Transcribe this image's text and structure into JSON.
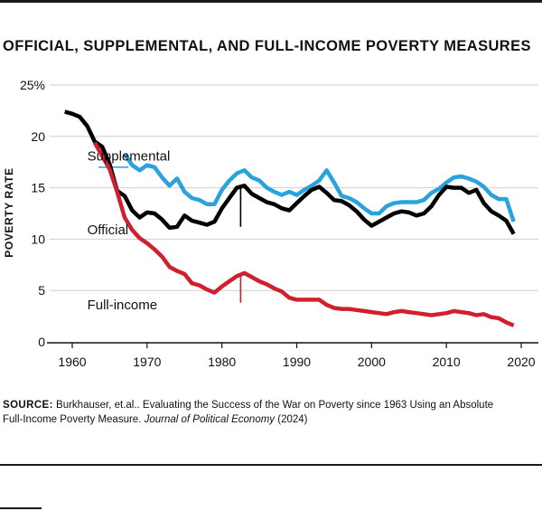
{
  "chart_data": {
    "type": "line",
    "title": "OFFICIAL, SUPPLEMENTAL, AND FULL-INCOME POVERTY MEASURES",
    "xlabel": "",
    "ylabel": "POVERTY RATE",
    "xlim": [
      1960,
      2020
    ],
    "ylim": [
      0,
      25
    ],
    "x_ticks": [
      1960,
      1970,
      1980,
      1990,
      2000,
      2010,
      2020
    ],
    "y_ticks": [
      {
        "value": 0,
        "label": "0"
      },
      {
        "value": 5,
        "label": "5"
      },
      {
        "value": 10,
        "label": "10"
      },
      {
        "value": 15,
        "label": "15"
      },
      {
        "value": 20,
        "label": "20"
      },
      {
        "value": 25,
        "label": "25%"
      }
    ],
    "series": [
      {
        "name": "Supplemental",
        "color": "#2aa3dd",
        "label_x": 1962,
        "label_y": 18.1,
        "leader": [
          [
            1963.5,
            17.0
          ],
          [
            1967.5,
            17.0
          ]
        ],
        "x": [
          1967,
          1968,
          1969,
          1970,
          1971,
          1972,
          1973,
          1974,
          1975,
          1976,
          1977,
          1978,
          1979,
          1980,
          1981,
          1982,
          1983,
          1984,
          1985,
          1986,
          1987,
          1988,
          1989,
          1990,
          1991,
          1992,
          1993,
          1994,
          1995,
          1996,
          1997,
          1998,
          1999,
          2000,
          2001,
          2002,
          2003,
          2004,
          2005,
          2006,
          2007,
          2008,
          2009,
          2010,
          2011,
          2012,
          2013,
          2014,
          2015,
          2016,
          2017,
          2018,
          2019
        ],
        "values": [
          18.3,
          17.2,
          16.7,
          17.2,
          17.0,
          16.0,
          15.2,
          15.9,
          14.6,
          14.0,
          13.8,
          13.4,
          13.4,
          14.8,
          15.7,
          16.4,
          16.7,
          16.0,
          15.7,
          15.0,
          14.6,
          14.3,
          14.6,
          14.3,
          14.8,
          15.2,
          15.7,
          16.7,
          15.5,
          14.2,
          14.0,
          13.6,
          13.0,
          12.5,
          12.5,
          13.2,
          13.5,
          13.6,
          13.6,
          13.6,
          13.8,
          14.5,
          14.9,
          15.5,
          16.0,
          16.1,
          15.9,
          15.6,
          15.1,
          14.3,
          13.9,
          13.9,
          11.7
        ]
      },
      {
        "name": "Official",
        "color": "#000000",
        "label_x": 1962,
        "label_y": 10.9,
        "leader": [
          [
            1982.5,
            15.0
          ],
          [
            1982.5,
            11.2
          ]
        ],
        "x": [
          1959,
          1960,
          1961,
          1962,
          1963,
          1964,
          1965,
          1966,
          1967,
          1968,
          1969,
          1970,
          1971,
          1972,
          1973,
          1974,
          1975,
          1976,
          1977,
          1978,
          1979,
          1980,
          1981,
          1982,
          1983,
          1984,
          1985,
          1986,
          1987,
          1988,
          1989,
          1990,
          1991,
          1992,
          1993,
          1994,
          1995,
          1996,
          1997,
          1998,
          1999,
          2000,
          2001,
          2002,
          2003,
          2004,
          2005,
          2006,
          2007,
          2008,
          2009,
          2010,
          2011,
          2012,
          2013,
          2014,
          2015,
          2016,
          2017,
          2018,
          2019
        ],
        "values": [
          22.4,
          22.2,
          21.9,
          21.0,
          19.5,
          19.0,
          17.3,
          14.7,
          14.2,
          12.8,
          12.1,
          12.6,
          12.5,
          11.9,
          11.1,
          11.2,
          12.3,
          11.8,
          11.6,
          11.4,
          11.7,
          13.0,
          14.0,
          15.0,
          15.2,
          14.4,
          14.0,
          13.6,
          13.4,
          13.0,
          12.8,
          13.5,
          14.2,
          14.8,
          15.1,
          14.5,
          13.8,
          13.7,
          13.3,
          12.7,
          11.9,
          11.3,
          11.7,
          12.1,
          12.5,
          12.7,
          12.6,
          12.3,
          12.5,
          13.2,
          14.3,
          15.1,
          15.0,
          15.0,
          14.5,
          14.8,
          13.5,
          12.7,
          12.3,
          11.8,
          10.5
        ]
      },
      {
        "name": "Full-income",
        "color": "#d0202e",
        "label_x": 1962,
        "label_y": 3.6,
        "leader": [
          [
            1982.5,
            6.6
          ],
          [
            1982.5,
            3.8
          ]
        ],
        "x": [
          1963,
          1964,
          1965,
          1966,
          1967,
          1968,
          1969,
          1970,
          1971,
          1972,
          1973,
          1974,
          1975,
          1976,
          1977,
          1978,
          1979,
          1980,
          1981,
          1982,
          1983,
          1984,
          1985,
          1986,
          1987,
          1988,
          1989,
          1990,
          1991,
          1992,
          1993,
          1994,
          1995,
          1996,
          1997,
          1998,
          1999,
          2000,
          2001,
          2002,
          2003,
          2004,
          2005,
          2006,
          2007,
          2008,
          2009,
          2010,
          2011,
          2012,
          2013,
          2014,
          2015,
          2016,
          2017,
          2018,
          2019
        ],
        "values": [
          19.4,
          18.1,
          16.8,
          14.6,
          12.1,
          10.9,
          10.1,
          9.6,
          9.0,
          8.3,
          7.3,
          6.9,
          6.6,
          5.7,
          5.5,
          5.1,
          4.8,
          5.4,
          5.9,
          6.4,
          6.7,
          6.3,
          5.9,
          5.6,
          5.2,
          4.9,
          4.3,
          4.1,
          4.1,
          4.1,
          4.1,
          3.6,
          3.3,
          3.2,
          3.2,
          3.1,
          3.0,
          2.9,
          2.8,
          2.7,
          2.9,
          3.0,
          2.9,
          2.8,
          2.7,
          2.6,
          2.7,
          2.8,
          3.0,
          2.9,
          2.8,
          2.6,
          2.7,
          2.4,
          2.3,
          1.9,
          1.6
        ]
      }
    ]
  },
  "source": {
    "label": "SOURCE:",
    "text_before": " Burkhauser, et.al.. Evaluating the Success of the War on Poverty since 1963 Using an Absolute Full-Income Poverty Measure. ",
    "journal": "Journal of Political Economy",
    "text_after": " (2024)"
  }
}
